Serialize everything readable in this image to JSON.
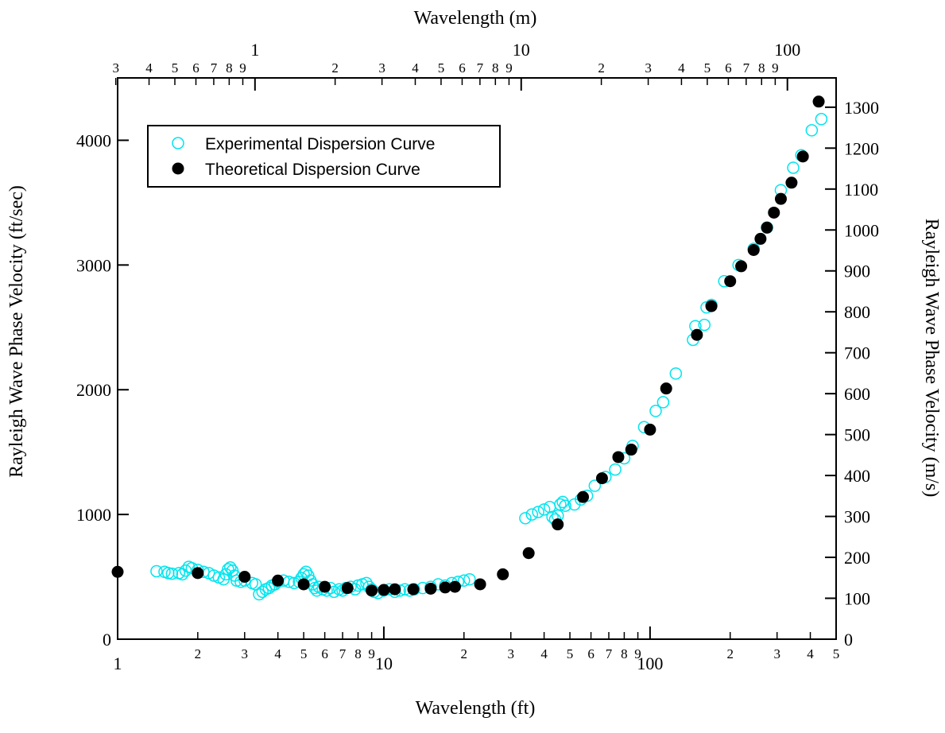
{
  "chart_data": {
    "type": "scatter",
    "xlabel_bottom": "Wavelength (ft)",
    "xlabel_top": "Wavelength (m)",
    "ylabel_left": "Rayleigh Wave Phase Velocity (ft/sec)",
    "ylabel_right": "Rayleigh Wave Phase Velocity (m/s)",
    "x_scale": "log",
    "xlim": [
      1,
      500
    ],
    "ylim": [
      0,
      4500
    ],
    "y_right_lim": [
      0,
      1371.6
    ],
    "bottom_major_ticks": [
      1,
      10,
      100
    ],
    "bottom_major_labels": [
      "1",
      "10",
      "100"
    ],
    "bottom_minor_ticks": [
      2,
      3,
      4,
      5,
      6,
      7,
      8,
      9,
      20,
      30,
      40,
      50,
      60,
      70,
      80,
      90,
      200,
      300,
      400,
      500
    ],
    "bottom_minor_labels": [
      "2",
      "3",
      "4",
      "5",
      "6",
      "7",
      "8",
      "9",
      "2",
      "3",
      "4",
      "5",
      "6",
      "7",
      "8",
      "9",
      "2",
      "3",
      "4",
      "5"
    ],
    "top_major_ticks": [
      1,
      10,
      100
    ],
    "top_major_labels": [
      "1",
      "10",
      "100"
    ],
    "top_minor_ticks": [
      0.3,
      0.4,
      0.5,
      0.6,
      0.7,
      0.8,
      0.9,
      2,
      3,
      4,
      5,
      6,
      7,
      8,
      9,
      20,
      30,
      40,
      50,
      60,
      70,
      80,
      90
    ],
    "top_minor_labels": [
      "3",
      "4",
      "5",
      "6",
      "7",
      "8",
      "9",
      "2",
      "3",
      "4",
      "5",
      "6",
      "7",
      "8",
      "9",
      "2",
      "3",
      "4",
      "5",
      "6",
      "7",
      "8",
      "9"
    ],
    "left_ticks": [
      0,
      1000,
      2000,
      3000,
      4000
    ],
    "left_tick_labels": [
      "0",
      "1000",
      "2000",
      "3000",
      "4000"
    ],
    "right_ticks": [
      0,
      100,
      200,
      300,
      400,
      500,
      600,
      700,
      800,
      900,
      1000,
      1100,
      1200,
      1300
    ],
    "right_tick_labels": [
      "0",
      "100",
      "200",
      "300",
      "400",
      "500",
      "600",
      "700",
      "800",
      "900",
      "1000",
      "1100",
      "1200",
      "1300"
    ],
    "legend": {
      "placement": "top-left inside"
    },
    "series": [
      {
        "name": "Experimental Dispersion Curve",
        "marker": "open-circle",
        "color": "#00e5ee",
        "points": [
          [
            1.4,
            545
          ],
          [
            1.5,
            540
          ],
          [
            1.55,
            530
          ],
          [
            1.6,
            525
          ],
          [
            1.7,
            530
          ],
          [
            1.75,
            520
          ],
          [
            1.8,
            550
          ],
          [
            1.85,
            580
          ],
          [
            1.9,
            570
          ],
          [
            2.0,
            555
          ],
          [
            2.1,
            540
          ],
          [
            2.2,
            530
          ],
          [
            2.3,
            510
          ],
          [
            2.4,
            495
          ],
          [
            2.5,
            480
          ],
          [
            2.55,
            520
          ],
          [
            2.6,
            560
          ],
          [
            2.65,
            575
          ],
          [
            2.7,
            550
          ],
          [
            2.75,
            510
          ],
          [
            2.8,
            470
          ],
          [
            2.9,
            460
          ],
          [
            3.0,
            470
          ],
          [
            3.2,
            450
          ],
          [
            3.3,
            440
          ],
          [
            3.4,
            360
          ],
          [
            3.5,
            380
          ],
          [
            3.6,
            400
          ],
          [
            3.7,
            410
          ],
          [
            3.8,
            430
          ],
          [
            3.9,
            440
          ],
          [
            4.0,
            460
          ],
          [
            4.2,
            470
          ],
          [
            4.4,
            460
          ],
          [
            4.6,
            450
          ],
          [
            4.8,
            460
          ],
          [
            4.9,
            490
          ],
          [
            5.0,
            520
          ],
          [
            5.1,
            540
          ],
          [
            5.2,
            510
          ],
          [
            5.3,
            470
          ],
          [
            5.4,
            440
          ],
          [
            5.5,
            410
          ],
          [
            5.6,
            390
          ],
          [
            5.7,
            420
          ],
          [
            5.9,
            400
          ],
          [
            6.1,
            390
          ],
          [
            6.3,
            410
          ],
          [
            6.5,
            380
          ],
          [
            6.8,
            400
          ],
          [
            7.0,
            390
          ],
          [
            7.2,
            410
          ],
          [
            7.5,
            420
          ],
          [
            7.8,
            400
          ],
          [
            8.0,
            430
          ],
          [
            8.3,
            440
          ],
          [
            8.6,
            450
          ],
          [
            8.8,
            420
          ],
          [
            9.0,
            400
          ],
          [
            9.2,
            380
          ],
          [
            9.5,
            370
          ],
          [
            10.0,
            390
          ],
          [
            10.5,
            400
          ],
          [
            11.0,
            380
          ],
          [
            11.5,
            390
          ],
          [
            12.0,
            400
          ],
          [
            12.5,
            390
          ],
          [
            13.0,
            400
          ],
          [
            14.0,
            410
          ],
          [
            15.0,
            420
          ],
          [
            16.0,
            440
          ],
          [
            17.0,
            430
          ],
          [
            18.0,
            450
          ],
          [
            19.0,
            460
          ],
          [
            20.0,
            470
          ],
          [
            21.0,
            480
          ],
          [
            34.0,
            970
          ],
          [
            36.0,
            1000
          ],
          [
            38.0,
            1020
          ],
          [
            40.0,
            1040
          ],
          [
            42.0,
            1060
          ],
          [
            43.0,
            980
          ],
          [
            44.0,
            960
          ],
          [
            45.0,
            990
          ],
          [
            46.0,
            1080
          ],
          [
            47.0,
            1100
          ],
          [
            48.0,
            1070
          ],
          [
            52.0,
            1080
          ],
          [
            55.0,
            1120
          ],
          [
            58.0,
            1150
          ],
          [
            62.0,
            1230
          ],
          [
            68.0,
            1300
          ],
          [
            74.0,
            1360
          ],
          [
            80.0,
            1450
          ],
          [
            86.0,
            1550
          ],
          [
            95.0,
            1700
          ],
          [
            105.0,
            1830
          ],
          [
            112.0,
            1900
          ],
          [
            125.0,
            2130
          ],
          [
            145.0,
            2400
          ],
          [
            148.0,
            2510
          ],
          [
            160.0,
            2520
          ],
          [
            163.0,
            2660
          ],
          [
            170.0,
            2680
          ],
          [
            190.0,
            2870
          ],
          [
            215.0,
            3000
          ],
          [
            245.0,
            3130
          ],
          [
            275.0,
            3300
          ],
          [
            310.0,
            3600
          ],
          [
            345.0,
            3780
          ],
          [
            370.0,
            3880
          ],
          [
            405.0,
            4080
          ],
          [
            440.0,
            4170
          ]
        ]
      },
      {
        "name": "Theoretical Dispersion Curve",
        "marker": "filled-circle",
        "color": "#000000",
        "points": [
          [
            1.0,
            540
          ],
          [
            2.0,
            530
          ],
          [
            3.0,
            500
          ],
          [
            4.0,
            470
          ],
          [
            5.0,
            440
          ],
          [
            6.0,
            420
          ],
          [
            7.3,
            410
          ],
          [
            9.0,
            390
          ],
          [
            10.0,
            395
          ],
          [
            11.0,
            400
          ],
          [
            12.9,
            400
          ],
          [
            15.0,
            405
          ],
          [
            17.0,
            415
          ],
          [
            18.5,
            420
          ],
          [
            23.0,
            440
          ],
          [
            28.0,
            520
          ],
          [
            35.0,
            690
          ],
          [
            45.0,
            920
          ],
          [
            56.0,
            1140
          ],
          [
            66.0,
            1290
          ],
          [
            76.0,
            1460
          ],
          [
            85.0,
            1520
          ],
          [
            100.0,
            1680
          ],
          [
            115.0,
            2010
          ],
          [
            150.0,
            2440
          ],
          [
            170.0,
            2670
          ],
          [
            200.0,
            2870
          ],
          [
            220.0,
            2990
          ],
          [
            245.0,
            3120
          ],
          [
            260.0,
            3210
          ],
          [
            275.0,
            3300
          ],
          [
            292.0,
            3420
          ],
          [
            310.0,
            3530
          ],
          [
            340.0,
            3660
          ],
          [
            375.0,
            3870
          ],
          [
            430.0,
            4310
          ]
        ]
      }
    ]
  }
}
